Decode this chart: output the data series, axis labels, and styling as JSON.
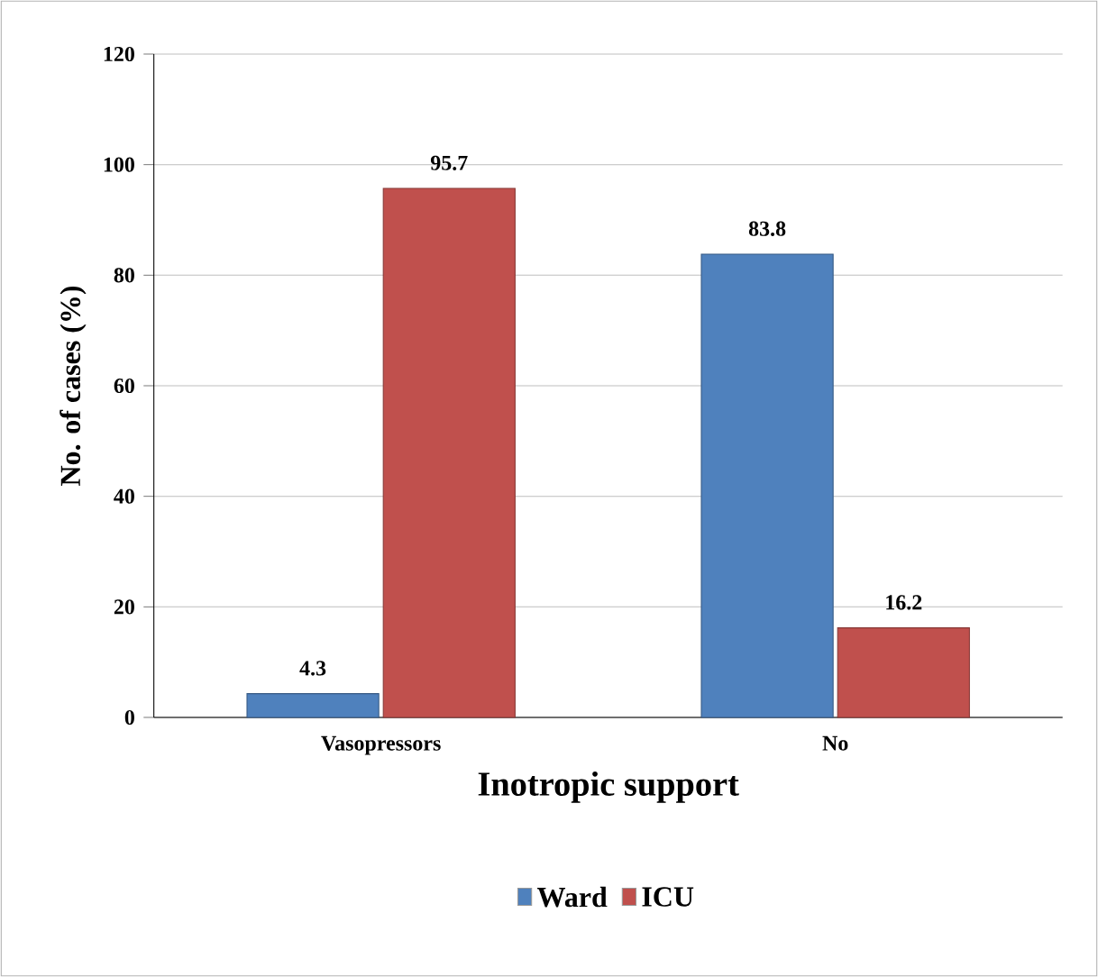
{
  "chart_data": {
    "type": "bar",
    "xlabel": "Inotropic support",
    "ylabel": "No. of cases (%)",
    "categories": [
      "Vasopressors",
      "No"
    ],
    "series": [
      {
        "name": "Ward",
        "color": "#4f81bd",
        "values": [
          4.3,
          83.8
        ]
      },
      {
        "name": "ICU",
        "color": "#c0504d",
        "values": [
          95.7,
          16.2
        ]
      }
    ],
    "ylim": [
      0,
      120
    ],
    "yticks": [
      0,
      20,
      40,
      60,
      80,
      100,
      120
    ],
    "grid": "y",
    "legend": "bottom",
    "data_labels": true
  }
}
